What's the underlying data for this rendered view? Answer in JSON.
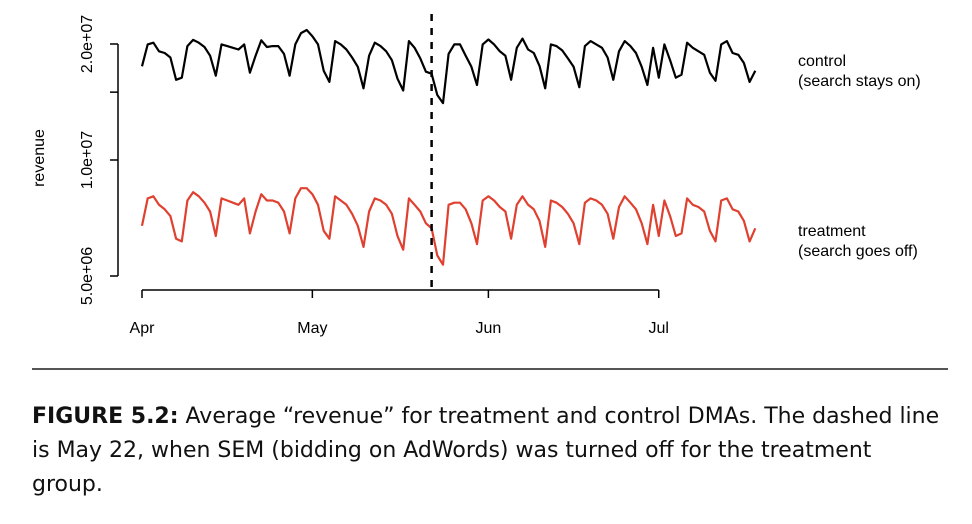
{
  "chart_data": {
    "type": "line",
    "title": "",
    "xlabel": "",
    "ylabel": "revenue",
    "y_scale": "log",
    "ylim": [
      5000000,
      30000000
    ],
    "y_ticks": [
      {
        "value": 5000000,
        "label": "5.0e+06"
      },
      {
        "value": 10000000,
        "label": "1.0e+07"
      },
      {
        "value": 20000000,
        "label": "2.0e+07"
      }
    ],
    "x_ticks": [
      {
        "date": "2014-04-01",
        "label": "Apr"
      },
      {
        "date": "2014-05-01",
        "label": "May"
      },
      {
        "date": "2014-06-01",
        "label": "Jun"
      },
      {
        "date": "2014-07-01",
        "label": "Jul"
      }
    ],
    "x_start": "2014-04-01",
    "x_end": "2014-07-22",
    "vline_date": "2014-05-22",
    "grid": false,
    "legend": "right",
    "series": [
      {
        "name": "control",
        "label": [
          "control",
          "(search stays on)"
        ],
        "color": "#000000",
        "values": [
          17500000,
          19950000,
          20150000,
          19150000,
          18950000,
          18450000,
          16150000,
          16350000,
          19750000,
          20500000,
          20150000,
          19650000,
          18650000,
          16550000,
          19950000,
          19750000,
          19550000,
          19350000,
          19950000,
          16850000,
          18650000,
          20450000,
          19650000,
          19750000,
          19750000,
          18850000,
          16550000,
          19950000,
          21350000,
          21750000,
          20950000,
          19950000,
          17050000,
          15950000,
          20350000,
          19950000,
          19350000,
          18450000,
          17450000,
          15350000,
          18650000,
          20150000,
          19750000,
          19150000,
          18150000,
          16250000,
          15150000,
          20350000,
          19550000,
          18350000,
          16950000,
          16750000,
          14750000,
          14050000,
          18850000,
          19950000,
          19950000,
          18650000,
          17450000,
          15650000,
          19950000,
          20550000,
          19950000,
          19150000,
          18650000,
          16150000,
          19550000,
          20650000,
          19350000,
          18950000,
          17550000,
          15350000,
          19950000,
          19750000,
          19250000,
          18350000,
          17450000,
          15450000,
          19750000,
          20350000,
          19950000,
          19550000,
          18450000,
          16150000,
          19150000,
          20350000,
          19750000,
          18950000,
          17450000,
          15650000,
          19550000,
          16350000,
          19950000,
          18150000,
          16350000,
          16650000,
          20150000,
          19550000,
          19150000,
          18750000,
          16850000,
          16050000,
          19950000,
          20350000,
          18950000,
          18750000,
          17850000,
          15950000,
          17050000
        ],
        "raw_values": [
          17500000,
          19950000,
          20150000,
          19150000,
          18950000,
          18450000,
          16150000,
          16350000,
          19750000,
          20500000,
          20150000,
          19650000,
          18650000,
          16550000,
          19950000,
          19750000,
          19550000,
          19350000,
          19950000,
          16850000,
          18650000,
          20450000,
          19650000,
          19750000,
          19750000,
          18850000,
          16550000,
          19950000,
          21350000,
          21750000,
          20950000,
          19950000,
          17050000,
          15950000,
          20350000,
          19950000,
          19350000,
          18450000,
          17450000,
          15350000,
          18650000,
          20150000,
          19750000,
          19150000,
          18150000,
          16250000,
          15150000,
          20350000,
          19550000,
          18350000,
          16950000,
          16750000,
          14750000,
          14050000,
          18850000,
          19950000,
          19950000,
          18650000,
          17450000,
          15650000,
          19950000,
          20550000,
          19950000,
          19150000,
          18650000,
          16150000,
          19550000,
          20650000,
          19350000,
          18950000,
          17550000,
          15350000,
          19950000,
          19750000,
          19250000,
          18350000,
          17450000,
          15450000,
          19750000,
          20350000,
          19950000,
          19550000,
          18450000,
          16150000,
          19150000,
          20350000,
          19750000,
          18950000,
          17450000,
          15650000,
          19550000,
          16350000,
          19950000,
          18150000,
          16350000,
          16650000,
          20150000,
          19550000,
          19150000,
          18750000,
          16850000,
          16050000,
          19950000,
          20350000,
          18950000,
          18750000,
          17850000,
          15950000,
          17050000
        ]
      },
      {
        "name": "treatment",
        "label": [
          "treatment",
          "(search goes off)"
        ],
        "color": "#e0402f",
        "values": [
          6750000,
          7950000,
          8050000,
          7650000,
          7450000,
          7150000,
          6250000,
          6150000,
          7850000,
          8250000,
          8050000,
          7750000,
          7350000,
          6350000,
          7950000,
          7850000,
          7750000,
          7650000,
          7950000,
          6450000,
          7350000,
          8150000,
          7850000,
          7850000,
          7750000,
          7350000,
          6450000,
          7950000,
          8450000,
          8450000,
          8150000,
          7650000,
          6550000,
          6250000,
          8050000,
          7850000,
          7650000,
          7250000,
          6750000,
          5950000,
          7350000,
          7950000,
          7850000,
          7650000,
          7250000,
          6350000,
          5850000,
          7950000,
          7650000,
          7350000,
          6850000,
          6650000,
          5650000,
          5350000,
          7650000,
          7750000,
          7750000,
          7450000,
          6850000,
          6050000,
          7850000,
          8050000,
          7850000,
          7550000,
          7350000,
          6250000,
          7650000,
          8050000,
          7650000,
          7450000,
          6950000,
          5950000,
          7850000,
          7750000,
          7550000,
          7250000,
          6850000,
          6050000,
          7750000,
          7950000,
          7850000,
          7650000,
          7250000,
          6250000,
          7550000,
          8050000,
          7750000,
          7450000,
          6850000,
          6050000,
          7650000,
          6350000,
          7850000,
          7150000,
          6350000,
          6450000,
          7950000,
          7650000,
          7550000,
          7350000,
          6550000,
          6150000,
          7850000,
          7950000,
          7450000,
          7350000,
          6950000,
          6150000,
          6650000
        ]
      }
    ]
  },
  "caption": {
    "label": "FIGURE 5.2:",
    "text": " Average “revenue” for treatment and control DMAs. The dashed line is May 22, when SEM (bidding on AdWords) was turned off for the treatment group."
  }
}
